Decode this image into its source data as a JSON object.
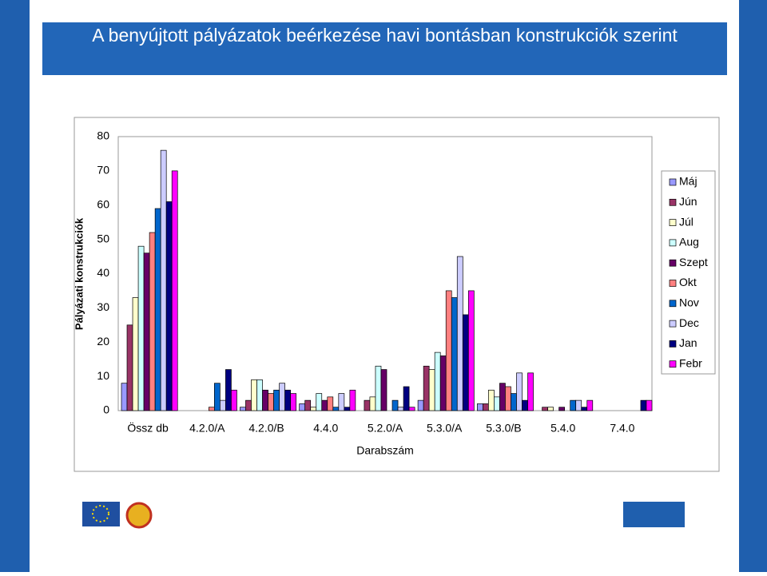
{
  "chart_data": {
    "type": "bar",
    "title": "A benyújtott pályázatok beérkezése havi bontásban konstrukciók szerint",
    "x_label": "Darabszám",
    "y_label": "Pályázati konstrukciók",
    "categories": [
      "Össz db",
      "4.2.0/A",
      "4.2.0/B",
      "4.4.0",
      "5.2.0/A",
      "5.3.0/A",
      "5.3.0/B",
      "5.4.0",
      "7.4.0"
    ],
    "series": [
      {
        "name": "Máj",
        "color": "#9999ff",
        "values": [
          8,
          0,
          1,
          2,
          0,
          3,
          2,
          0,
          0
        ]
      },
      {
        "name": "Jún",
        "color": "#993366",
        "values": [
          25,
          0,
          3,
          3,
          3,
          13,
          2,
          1,
          0
        ]
      },
      {
        "name": "Júl",
        "color": "#ffffcc",
        "values": [
          33,
          0,
          9,
          1,
          4,
          12,
          6,
          1,
          0
        ]
      },
      {
        "name": "Aug",
        "color": "#ccffff",
        "values": [
          48,
          0,
          9,
          5,
          13,
          17,
          4,
          0,
          0
        ]
      },
      {
        "name": "Szept",
        "color": "#660066",
        "values": [
          46,
          0,
          6,
          3,
          12,
          16,
          8,
          1,
          0
        ]
      },
      {
        "name": "Okt",
        "color": "#ff8080",
        "values": [
          52,
          1,
          5,
          4,
          0,
          35,
          7,
          0,
          0
        ]
      },
      {
        "name": "Nov",
        "color": "#0066cc",
        "values": [
          59,
          8,
          6,
          1,
          3,
          33,
          5,
          3,
          0
        ]
      },
      {
        "name": "Dec",
        "color": "#ccccff",
        "values": [
          76,
          3,
          8,
          5,
          1,
          45,
          11,
          3,
          0
        ]
      },
      {
        "name": "Jan",
        "color": "#000080",
        "values": [
          61,
          12,
          6,
          1,
          7,
          28,
          3,
          1,
          3
        ]
      },
      {
        "name": "Febr",
        "color": "#ff00ff",
        "values": [
          70,
          6,
          5,
          6,
          1,
          35,
          11,
          3,
          3
        ]
      }
    ],
    "ylim": [
      0,
      80
    ],
    "yticks": [
      0,
      10,
      20,
      30,
      40,
      50,
      60,
      70,
      80
    ],
    "grid": false,
    "legend": "right"
  }
}
